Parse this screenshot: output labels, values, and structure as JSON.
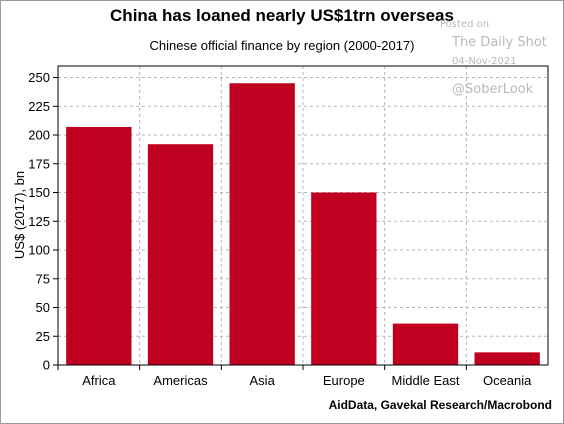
{
  "header": {
    "title": "China has loaned nearly US$1trn overseas",
    "subtitle": "Chinese official finance by region (2000-2017)"
  },
  "watermark": {
    "posted": "Posted on",
    "site": "The Daily Shot",
    "date": "04-Nov-2021",
    "handle": "@SoberLook"
  },
  "source": "AidData, Gavekal Research/Macrobond",
  "colors": {
    "bar": "#c00020",
    "grid": "#b5b5b5",
    "axis": "#000000"
  },
  "chart_data": {
    "type": "bar",
    "categories": [
      "Africa",
      "Americas",
      "Asia",
      "Europe",
      "Middle East",
      "Oceania"
    ],
    "values": [
      207,
      192,
      245,
      150,
      36,
      11
    ],
    "ylabel": "US$ (2017), bn",
    "xlabel": "",
    "ylim": [
      0,
      260
    ],
    "yticks": [
      0,
      25,
      50,
      75,
      100,
      125,
      150,
      175,
      200,
      225,
      250
    ],
    "grid": true
  }
}
